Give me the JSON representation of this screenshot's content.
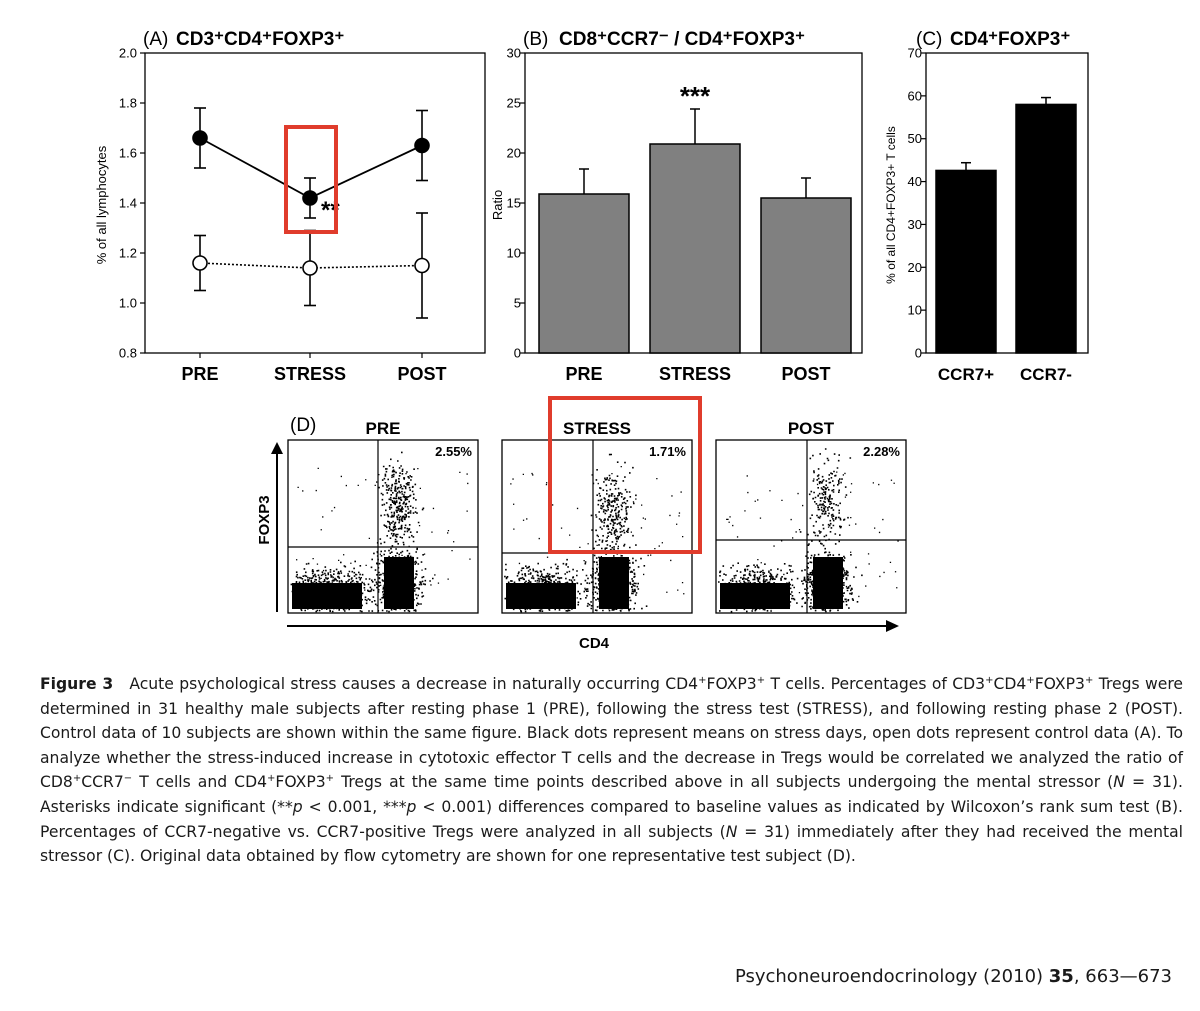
{
  "chart_data": [
    {
      "type": "line",
      "panel_label": "(A)",
      "title": "CD3⁺CD4⁺FOXP3⁺",
      "ylabel": "% of all lymphocytes",
      "categories": [
        "PRE",
        "STRESS",
        "POST"
      ],
      "ylim": [
        0.8,
        2.0
      ],
      "yticks": [
        "0.8",
        "1.0",
        "1.2",
        "1.4",
        "1.6",
        "1.8",
        "2.0"
      ],
      "series": [
        {
          "values": [
            1.66,
            1.42,
            1.63
          ],
          "error": [
            0.12,
            0.08,
            0.14
          ],
          "marker": "filled",
          "line": "solid"
        },
        {
          "values": [
            1.16,
            1.14,
            1.15
          ],
          "error": [
            0.11,
            0.15,
            0.21
          ],
          "marker": "open",
          "line": "dotted"
        }
      ],
      "annotations": [
        {
          "category": "STRESS",
          "text": "**"
        }
      ],
      "highlight": "STRESS"
    },
    {
      "type": "bar",
      "panel_label": "(B)",
      "title": "CD8⁺CCR7⁻ / CD4⁺FOXP3⁺",
      "ylabel": "Ratio",
      "categories": [
        "PRE",
        "STRESS",
        "POST"
      ],
      "values": [
        15.9,
        20.9,
        15.5
      ],
      "error": [
        2.5,
        3.5,
        2.0
      ],
      "ylim": [
        0,
        30
      ],
      "yticks": [
        "0",
        "5",
        "10",
        "15",
        "20",
        "25",
        "30"
      ],
      "bar_color": "#808080",
      "annotations": [
        {
          "category": "STRESS",
          "text": "***"
        }
      ]
    },
    {
      "type": "bar",
      "panel_label": "(C)",
      "title": "CD4⁺FOXP3⁺",
      "ylabel": "% of all CD4+FOXP3+ T cells",
      "categories": [
        "CCR7+",
        "CCR7-"
      ],
      "values": [
        42.6,
        58
      ],
      "error": [
        1.8,
        1.6
      ],
      "ylim": [
        0,
        70
      ],
      "yticks": [
        "0",
        "10",
        "20",
        "30",
        "40",
        "50",
        "60",
        "70"
      ],
      "bar_color": "#000000"
    },
    {
      "type": "scatter",
      "panel_label": "(D)",
      "xlabel": "CD4",
      "ylabel": "FOXP3",
      "plots": [
        {
          "title": "PRE",
          "percent": "2.55%"
        },
        {
          "title": "STRESS",
          "percent": "1.71%"
        },
        {
          "title": "POST",
          "percent": "2.28%"
        }
      ],
      "highlight": "STRESS"
    }
  ],
  "caption": {
    "label": "Figure 3",
    "segments": [
      {
        "t": "Acute psychological stress causes a decrease in naturally occurring CD4"
      },
      {
        "t": "+",
        "sup": true
      },
      {
        "t": "FOXP3"
      },
      {
        "t": "+",
        "sup": true
      },
      {
        "t": " T cells. Percentages of CD3"
      },
      {
        "t": "+",
        "sup": true
      },
      {
        "t": "CD4"
      },
      {
        "t": "+",
        "sup": true
      },
      {
        "t": "FOXP3"
      },
      {
        "t": "+",
        "sup": true
      },
      {
        "t": " Tregs were determined in 31 healthy male subjects after resting phase 1 (PRE), following the stress test (STRESS), and following resting phase 2 (POST). Control data of 10 subjects are shown within the same figure. Black dots represent means on stress days, open dots represent control data (A). To analyze whether the stress-induced increase in cytotoxic effector T cells and the decrease in Tregs would be correlated we analyzed the ratio of CD8"
      },
      {
        "t": "+",
        "sup": true
      },
      {
        "t": "CCR7"
      },
      {
        "t": "−",
        "sup": true
      },
      {
        "t": " T cells and CD4"
      },
      {
        "t": "+",
        "sup": true
      },
      {
        "t": "FOXP3"
      },
      {
        "t": "+",
        "sup": true
      },
      {
        "t": " Tregs at the same time points described above in all subjects undergoing the mental stressor ("
      },
      {
        "t": "N",
        "italic": true
      },
      {
        "t": " = 31). Asterisks indicate significant (**"
      },
      {
        "t": "p",
        "italic": true
      },
      {
        "t": " < 0.001, ***"
      },
      {
        "t": "p",
        "italic": true
      },
      {
        "t": " < 0.001) differences compared to baseline values as indicated by Wilcoxon’s rank sum test (B). Percentages of CCR7-negative vs. CCR7-positive Tregs were analyzed in all subjects ("
      },
      {
        "t": "N",
        "italic": true
      },
      {
        "t": " = 31) immediately after they had received the mental stressor (C). Original data obtained by flow cytometry are shown for one representative test subject (D)."
      }
    ]
  },
  "citation": {
    "journal": "Psychoneuroendocrinology (2010)",
    "volume": "35",
    "pages": ", 663—673"
  },
  "colors": {
    "highlight_box": "#e03c2c",
    "bar_gray": "#808080",
    "text": "#1a1a1a"
  }
}
